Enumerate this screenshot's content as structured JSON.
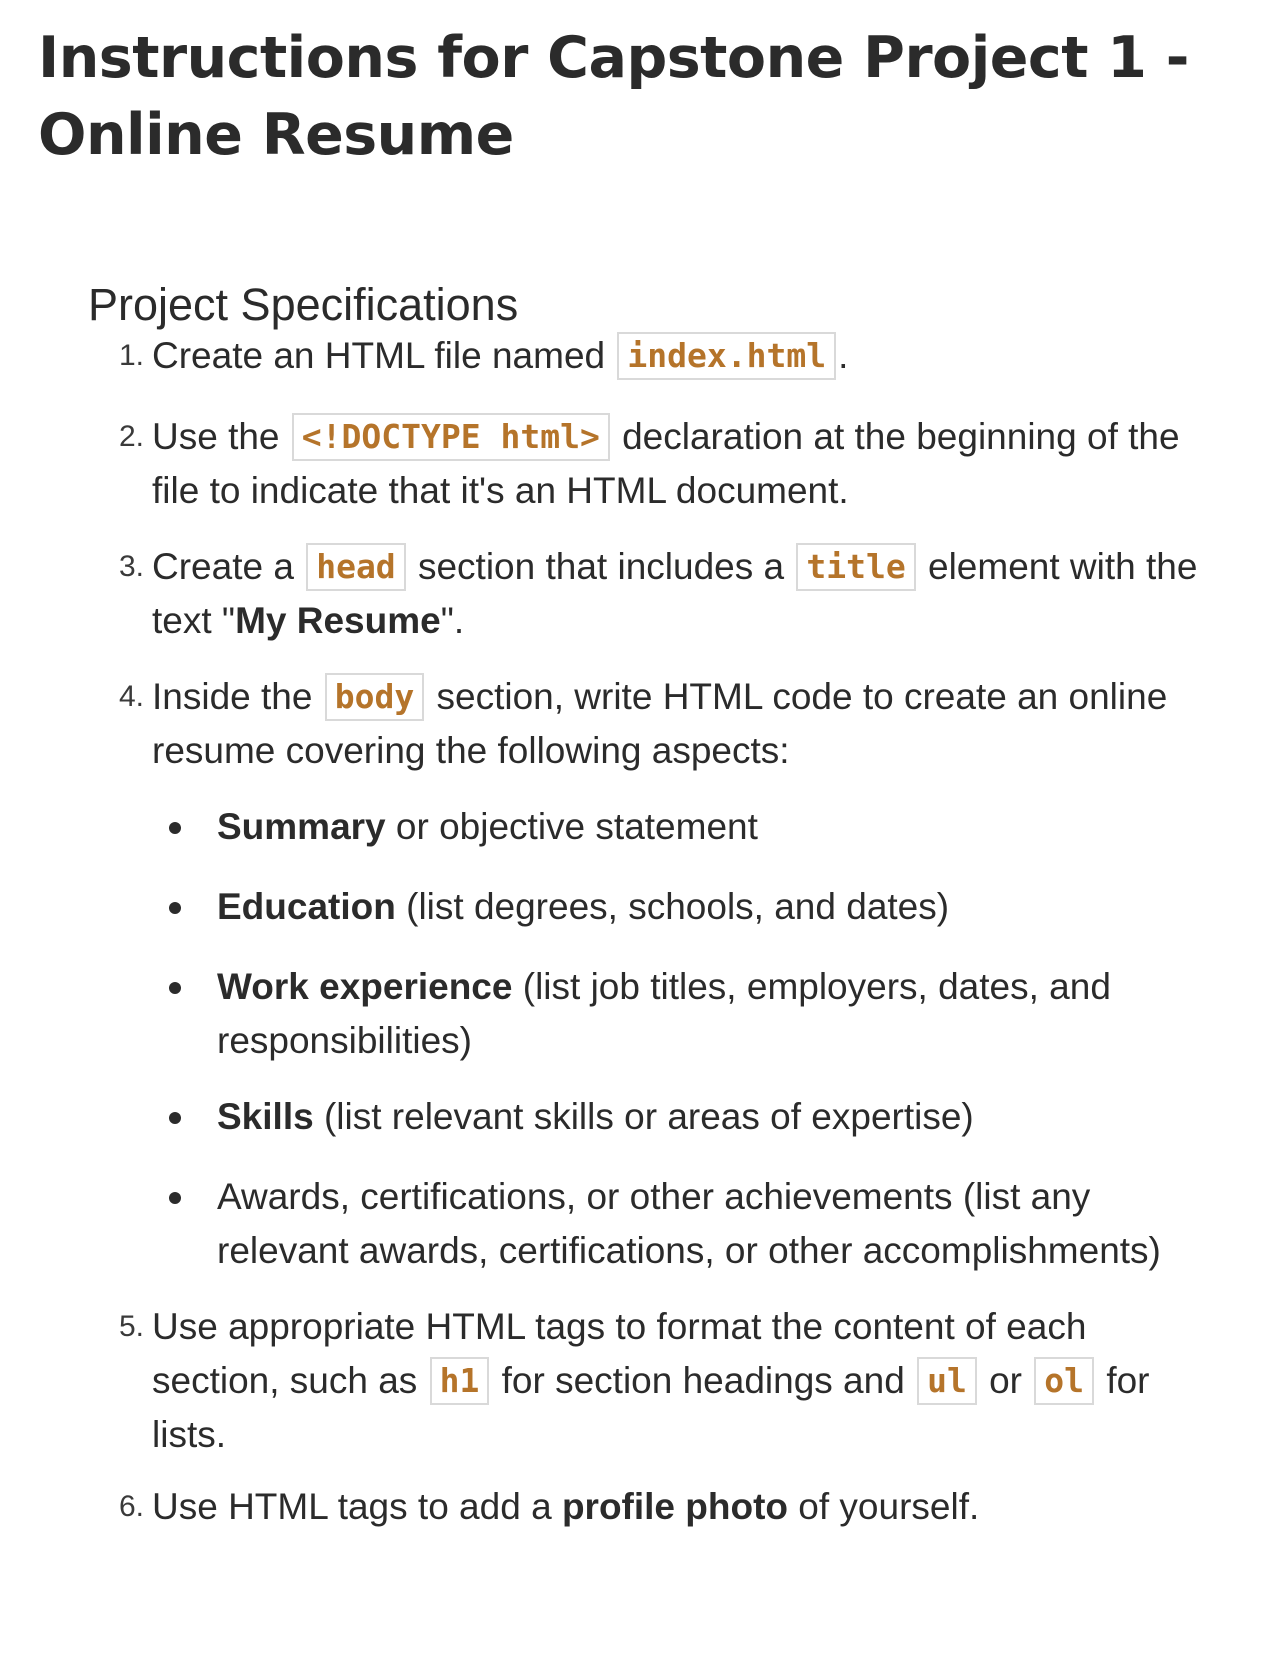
{
  "document": {
    "title": "Instructions for Capstone Project 1 - Online Resume",
    "section_heading": "Project Specifications"
  },
  "specs": [
    {
      "number": "1.",
      "text_before": "Create an HTML file named",
      "code": "index.html",
      "text_after": "."
    },
    {
      "number": "2.",
      "text_before": "Use the",
      "code": "<!DOCTYPE html>",
      "text_after": "declaration at the beginning of the file to indicate that it's an HTML document."
    },
    {
      "number": "3.",
      "text_before": "Create a",
      "code": "head",
      "text_mid": "section that includes a",
      "code2": "title",
      "text_mid2": "element with the text \"",
      "bold": "My Resume",
      "text_after": "\"."
    },
    {
      "number": "4.",
      "text_before": "Inside the",
      "code": "body",
      "text_after": "section, write HTML code to create an online resume covering the following aspects:"
    },
    {
      "number": "5.",
      "text_before": "Use appropriate HTML tags to format the content of each section, such as",
      "code": "h1",
      "text_mid": "for section headings and",
      "code2": "ul",
      "text_mid2": "or",
      "code3": "ol",
      "text_after": "for lists."
    },
    {
      "number": "6.",
      "text_before": "Use HTML tags to add a",
      "bold": "profile photo",
      "text_after": "of yourself."
    }
  ],
  "aspects": [
    {
      "bold": "Summary",
      "text": "or objective statement"
    },
    {
      "bold": "Education",
      "text": "(list degrees, schools, and dates)"
    },
    {
      "bold": "Work experience",
      "text": "(list job titles, employers, dates, and responsibilities)"
    },
    {
      "bold": "Skills",
      "text": "(list relevant skills or areas of expertise)"
    },
    {
      "bold": "",
      "text": "Awards, certifications, or other achievements (list any relevant awards, certifications, or other accomplishments)"
    }
  ],
  "colors": {
    "text": "#2b2b2b",
    "code_text": "#b5742a",
    "code_border": "#d9d9d9",
    "background": "#ffffff"
  }
}
